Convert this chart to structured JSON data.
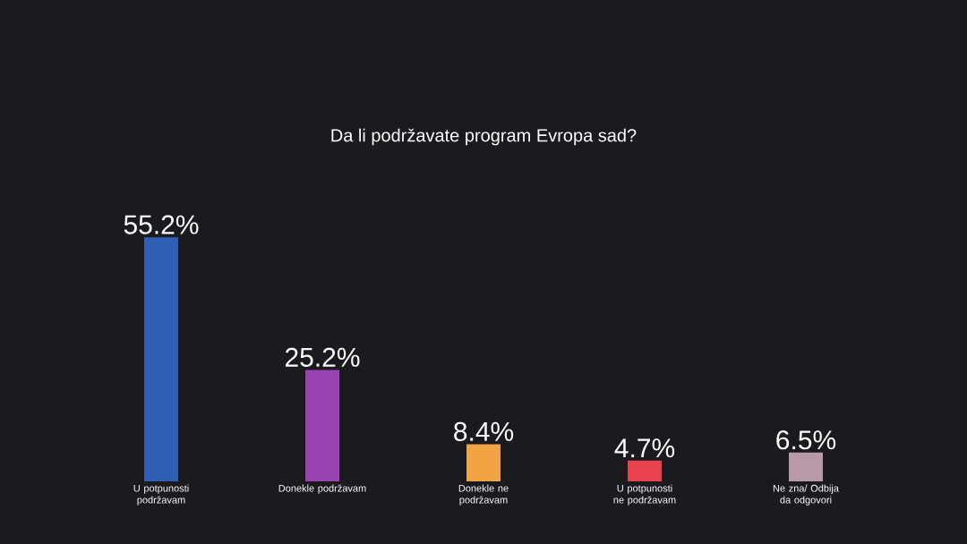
{
  "chart_data": {
    "type": "bar",
    "title": "Da li podržavate program Evropa sad?",
    "categories": [
      "U potpunosti podržavam",
      "Donekle podržavam",
      "Donekle ne podržavam",
      "U potpunosti ne podržavam",
      "Ne zna/ Odbija da odgovori"
    ],
    "values": [
      55.2,
      25.2,
      8.4,
      4.7,
      6.5
    ],
    "value_labels": [
      "55.2%",
      "25.2%",
      "8.4%",
      "4.7%",
      "6.5%"
    ],
    "colors": [
      "#2f5fb4",
      "#9a44b4",
      "#f2a445",
      "#e8424f",
      "#b89aa6"
    ]
  }
}
